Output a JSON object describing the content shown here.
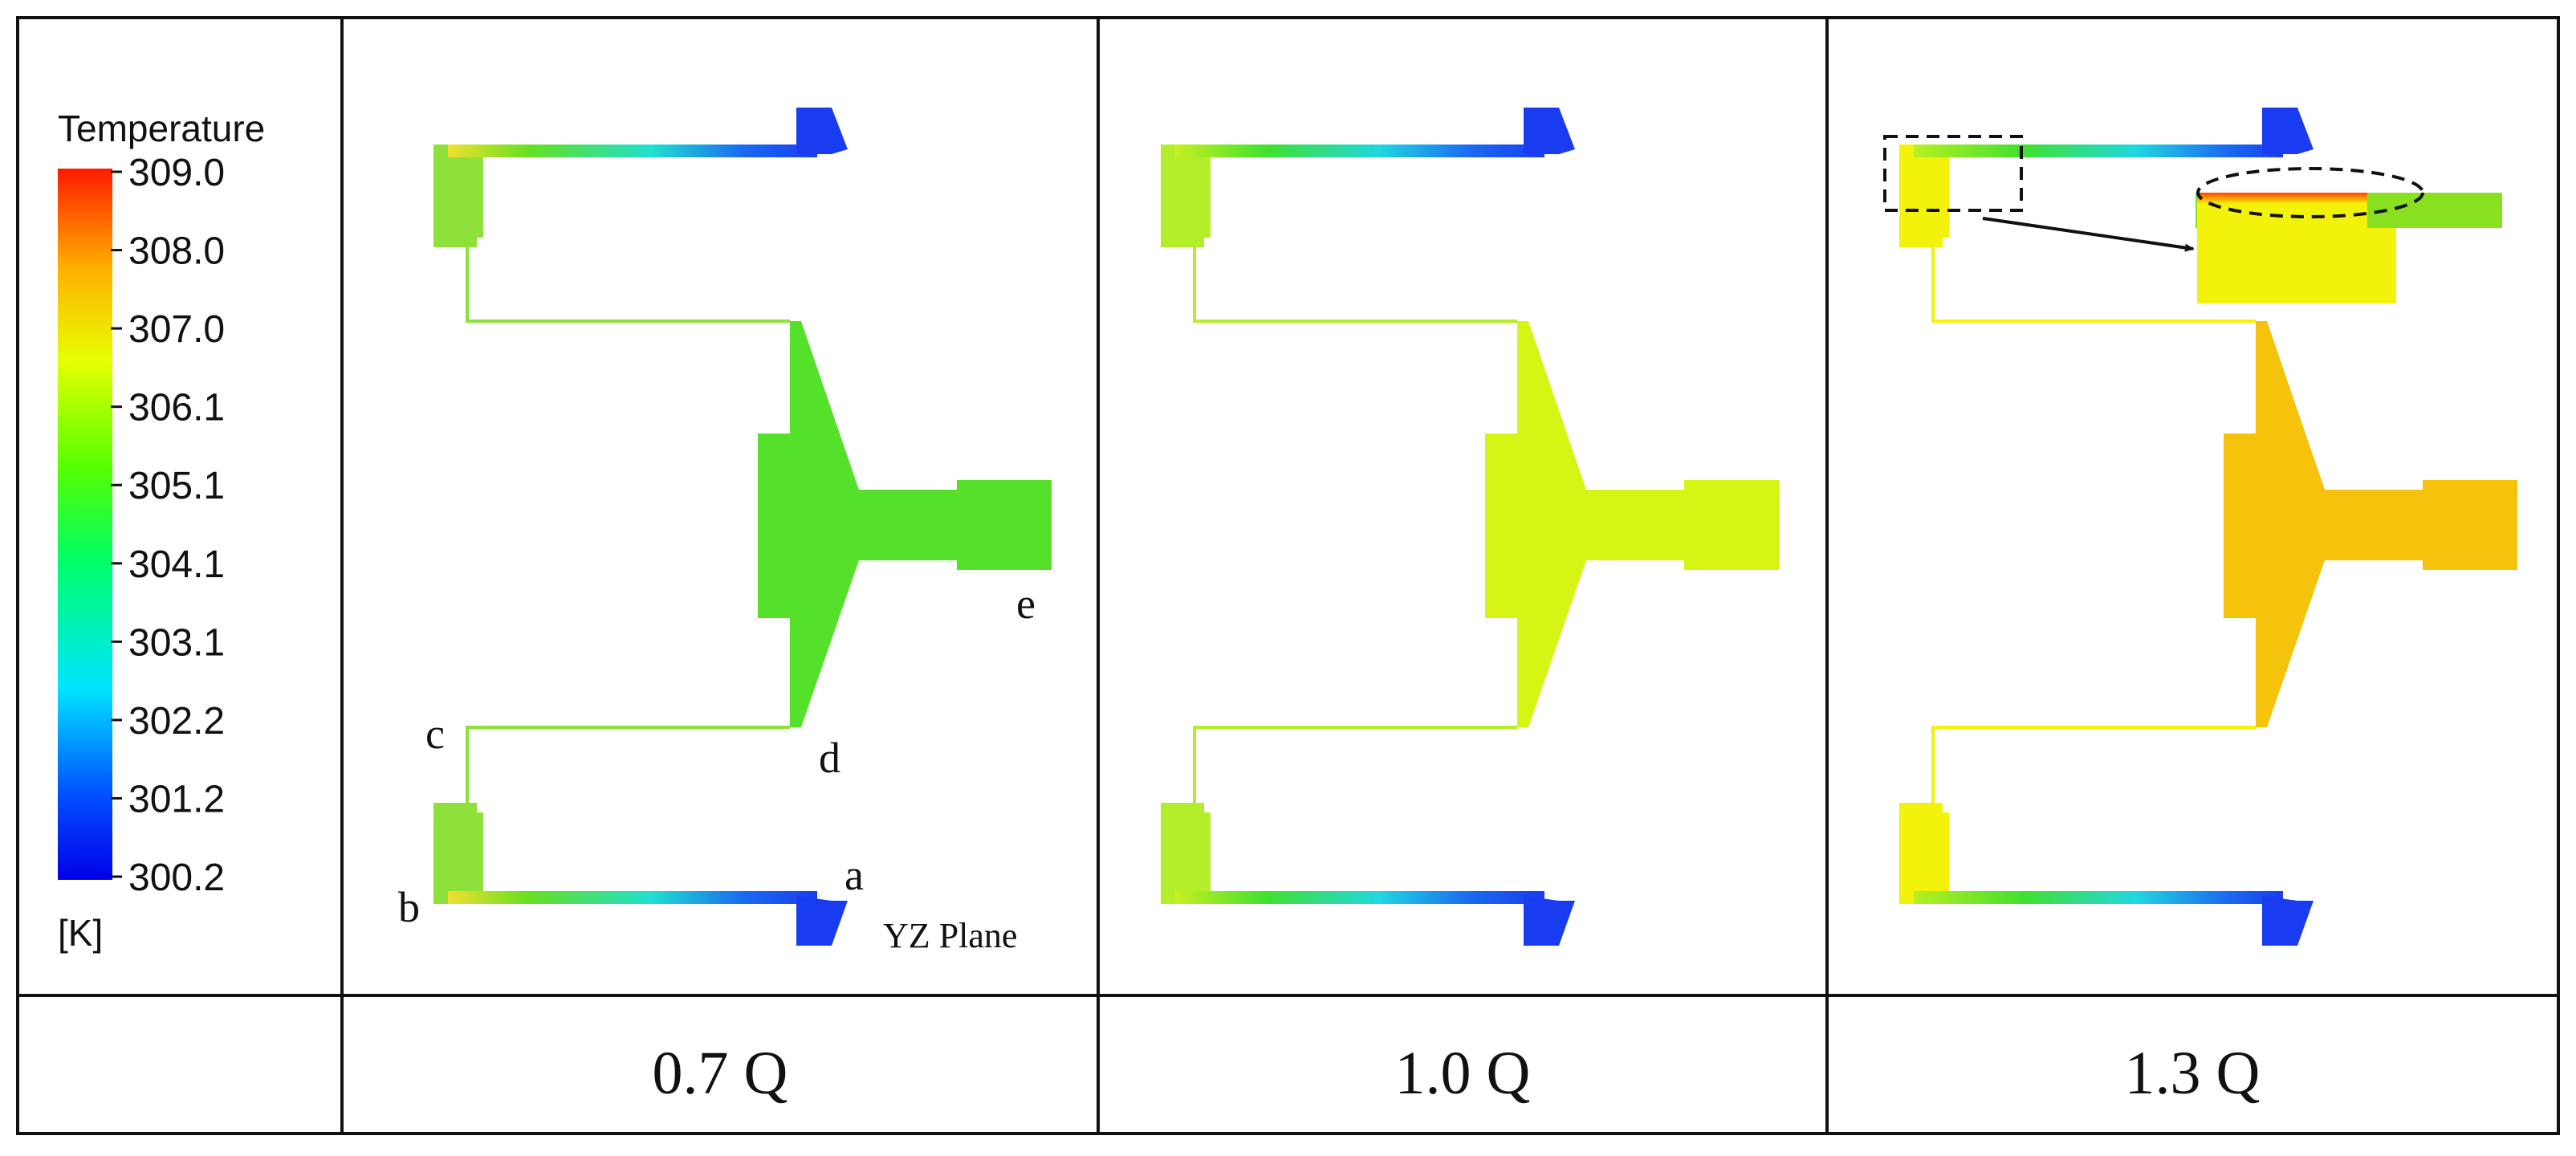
{
  "legend": {
    "title": "Temperature",
    "unit": "[K]",
    "ticks": [
      "309.0",
      "308.0",
      "307.0",
      "306.1",
      "305.1",
      "304.1",
      "303.1",
      "302.2",
      "301.2",
      "300.2"
    ]
  },
  "panel1": {
    "labels": {
      "a": "a",
      "b": "b",
      "c": "c",
      "d": "d",
      "e": "e"
    },
    "plane": "YZ Plane",
    "caption": "0.7 Q"
  },
  "panel2": {
    "caption": "1.0 Q"
  },
  "panel3": {
    "caption": "1.3 Q"
  },
  "colors": {
    "cold_end": "#1a3cf0",
    "panel1_body": "#55e02a",
    "panel2_body": "#d6f514",
    "panel3_body": "#f5c20c",
    "panel3_header": "#f2f20a"
  }
}
